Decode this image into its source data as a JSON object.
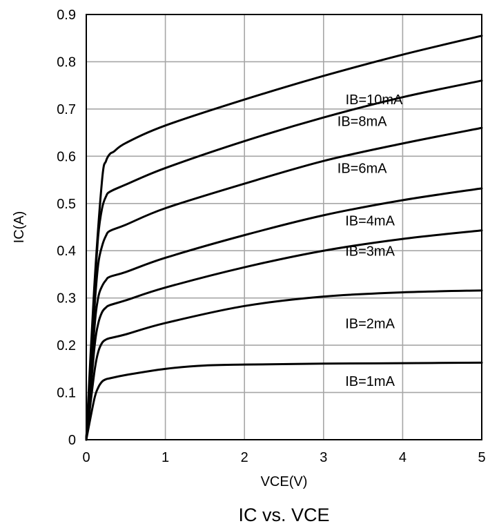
{
  "chart_data": {
    "type": "line",
    "title": "IC vs. VCE",
    "xlabel": "VCE(V)",
    "ylabel": "IC(A)",
    "xlim": [
      0,
      5
    ],
    "ylim": [
      0,
      0.9
    ],
    "x_ticks": [
      "0",
      "1",
      "2",
      "3",
      "4",
      "5"
    ],
    "y_ticks": [
      "0",
      "0.1",
      "0.2",
      "0.3",
      "0.4",
      "0.5",
      "0.6",
      "0.7",
      "0.8",
      "0.9"
    ],
    "grid": true,
    "legend": "none",
    "line_color": "#000000",
    "series": [
      {
        "name": "IB=10mA",
        "x": [
          0,
          0.1,
          0.2,
          0.25,
          0.3,
          0.35,
          0.5,
          1,
          2,
          3,
          4,
          5
        ],
        "y": [
          0,
          0.32,
          0.55,
          0.59,
          0.605,
          0.61,
          0.628,
          0.665,
          0.72,
          0.77,
          0.815,
          0.855
        ]
      },
      {
        "name": "IB=8mA",
        "x": [
          0,
          0.1,
          0.15,
          0.2,
          0.25,
          0.3,
          0.5,
          1,
          2,
          3,
          4,
          5
        ],
        "y": [
          0,
          0.3,
          0.43,
          0.49,
          0.515,
          0.525,
          0.54,
          0.575,
          0.632,
          0.682,
          0.725,
          0.76
        ]
      },
      {
        "name": "IB=6mA",
        "x": [
          0,
          0.1,
          0.15,
          0.2,
          0.25,
          0.3,
          0.5,
          1,
          2,
          3,
          4,
          5
        ],
        "y": [
          0,
          0.27,
          0.37,
          0.41,
          0.432,
          0.442,
          0.455,
          0.49,
          0.542,
          0.59,
          0.627,
          0.66
        ]
      },
      {
        "name": "IB=4mA",
        "x": [
          0,
          0.1,
          0.15,
          0.2,
          0.25,
          0.3,
          0.5,
          1,
          2,
          3,
          4,
          5
        ],
        "y": [
          0,
          0.23,
          0.3,
          0.325,
          0.338,
          0.345,
          0.355,
          0.385,
          0.433,
          0.475,
          0.507,
          0.532
        ]
      },
      {
        "name": "IB=3mA",
        "x": [
          0,
          0.1,
          0.15,
          0.2,
          0.25,
          0.3,
          0.5,
          1,
          2,
          3,
          4,
          5
        ],
        "y": [
          0,
          0.19,
          0.245,
          0.27,
          0.28,
          0.285,
          0.295,
          0.322,
          0.365,
          0.4,
          0.425,
          0.443
        ]
      },
      {
        "name": "IB=2mA",
        "x": [
          0,
          0.1,
          0.15,
          0.2,
          0.25,
          0.3,
          0.5,
          1,
          2,
          3,
          4,
          5
        ],
        "y": [
          0,
          0.14,
          0.185,
          0.205,
          0.212,
          0.215,
          0.223,
          0.247,
          0.283,
          0.303,
          0.312,
          0.316
        ]
      },
      {
        "name": "IB=1mA",
        "x": [
          0,
          0.1,
          0.15,
          0.2,
          0.25,
          0.3,
          0.5,
          1,
          1.5,
          2,
          3,
          4,
          5
        ],
        "y": [
          0,
          0.085,
          0.11,
          0.123,
          0.128,
          0.13,
          0.137,
          0.15,
          0.157,
          0.159,
          0.161,
          0.162,
          0.163
        ]
      }
    ]
  }
}
